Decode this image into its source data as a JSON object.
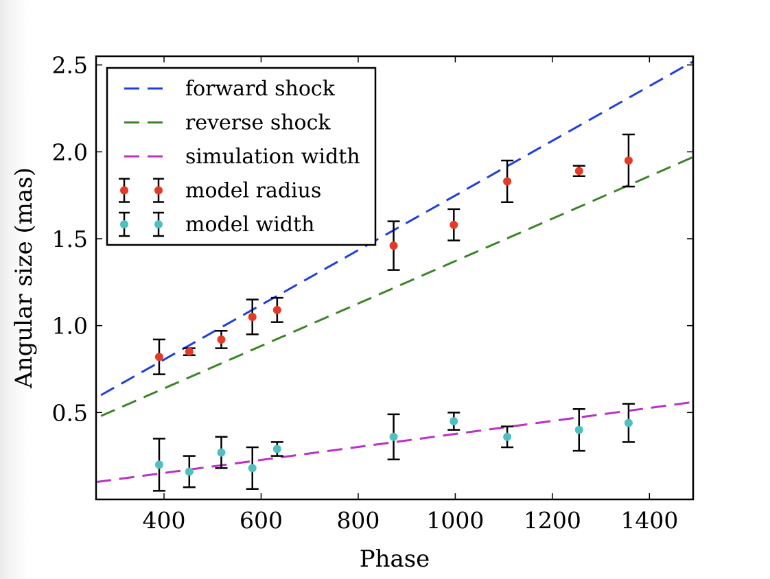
{
  "chart_data": {
    "type": "scatter",
    "xlabel": "Phase",
    "ylabel": "Angular size (mas)",
    "xlim": [
      260,
      1490
    ],
    "ylim": [
      0.0,
      2.55
    ],
    "x_ticks": [
      400,
      600,
      800,
      1000,
      1200,
      1400
    ],
    "y_ticks": [
      0.5,
      1.0,
      1.5,
      2.0,
      2.5
    ],
    "x_tick_labels": [
      "400",
      "600",
      "800",
      "1000",
      "1200",
      "1400"
    ],
    "y_tick_labels": [
      "0.5",
      "1.0",
      "1.5",
      "2.0",
      "2.5"
    ],
    "grid": false,
    "legend_position": "top-left",
    "lines": [
      {
        "name": "forward shock",
        "style": "dashed",
        "color": "#1f3ee0",
        "x": [
          270,
          1490
        ],
        "y": [
          0.6,
          2.52
        ]
      },
      {
        "name": "reverse shock",
        "style": "dashed",
        "color": "#3a8428",
        "x": [
          270,
          1490
        ],
        "y": [
          0.48,
          1.97
        ]
      },
      {
        "name": "simulation width",
        "style": "dashed",
        "color": "#bb2fc4",
        "x": [
          260,
          1490
        ],
        "y": [
          0.1,
          0.56
        ]
      }
    ],
    "errorbar_series": [
      {
        "name": "model radius",
        "color": "#e53a25",
        "x": [
          390,
          452,
          518,
          582,
          633,
          873,
          997,
          1107,
          1255,
          1357
        ],
        "y": [
          0.82,
          0.85,
          0.92,
          1.05,
          1.09,
          1.46,
          1.58,
          1.83,
          1.89,
          1.95
        ],
        "err": [
          0.1,
          0.02,
          0.05,
          0.1,
          0.07,
          0.14,
          0.09,
          0.12,
          0.03,
          0.15
        ]
      },
      {
        "name": "model width",
        "color": "#4fbfbf",
        "x": [
          390,
          452,
          518,
          582,
          633,
          873,
          997,
          1107,
          1255,
          1357
        ],
        "y": [
          0.2,
          0.16,
          0.27,
          0.18,
          0.29,
          0.36,
          0.45,
          0.36,
          0.4,
          0.44
        ],
        "err": [
          0.15,
          0.09,
          0.09,
          0.12,
          0.04,
          0.13,
          0.05,
          0.06,
          0.12,
          0.11
        ]
      }
    ]
  }
}
